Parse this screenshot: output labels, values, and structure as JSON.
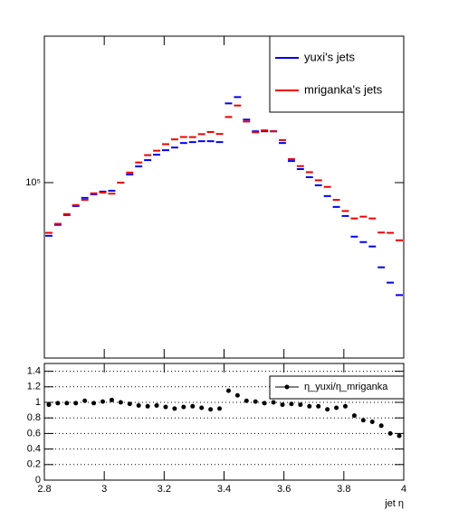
{
  "chart_data": [
    {
      "type": "histogram",
      "log_y": true,
      "bins": [
        2.8,
        2.83,
        2.86,
        2.89,
        2.92,
        2.95,
        2.98,
        3.01,
        3.04,
        3.07,
        3.1,
        3.13,
        3.16,
        3.19,
        3.22,
        3.25,
        3.28,
        3.31,
        3.34,
        3.37,
        3.4,
        3.43,
        3.46,
        3.49,
        3.52,
        3.55,
        3.58,
        3.61,
        3.64,
        3.67,
        3.7,
        3.73,
        3.76,
        3.79,
        3.82,
        3.85,
        3.88,
        3.91,
        3.94,
        3.97,
        4.0
      ],
      "series": [
        {
          "name": "yuxi's jets",
          "color": "#0000ee",
          "values": [
            57900,
            64800,
            71700,
            78600,
            85500,
            88700,
            91200,
            92000,
            100000,
            108700,
            118100,
            126000,
            133200,
            139500,
            143400,
            150200,
            151600,
            153000,
            153000,
            151600,
            225600,
            240700,
            191000,
            169400,
            169400,
            169400,
            150200,
            124800,
            114900,
            105700,
            97300,
            87100,
            77900,
            71000,
            57400,
            54300,
            51900,
            41900,
            35800,
            31500
          ]
        },
        {
          "name": "mriganka's jets",
          "color": "#ee0000",
          "values": [
            59700,
            65500,
            72400,
            79400,
            83800,
            89600,
            90300,
            89300,
            100000,
            110900,
            123000,
            132600,
            138800,
            148400,
            155900,
            159800,
            159600,
            164500,
            168100,
            164800,
            196200,
            220800,
            187300,
            167700,
            171100,
            169400,
            154800,
            127300,
            118500,
            111300,
            102400,
            95700,
            83800,
            74700,
            69200,
            70500,
            69200,
            59900,
            59700,
            55300
          ]
        }
      ],
      "xlim": [
        2.8,
        4.0
      ],
      "xticks": [
        2.8,
        3,
        3.2,
        3.4,
        3.6,
        3.8,
        4
      ],
      "ylim": [
        16500,
        450000
      ],
      "yticks": [
        {
          "value": 100000,
          "label": "10⁵"
        }
      ],
      "legend": "top-right"
    },
    {
      "type": "scatter",
      "xlabel": "jet η",
      "x": [
        2.815,
        2.845,
        2.875,
        2.905,
        2.935,
        2.965,
        2.995,
        3.025,
        3.055,
        3.085,
        3.115,
        3.145,
        3.175,
        3.205,
        3.235,
        3.265,
        3.295,
        3.325,
        3.355,
        3.385,
        3.415,
        3.445,
        3.475,
        3.505,
        3.535,
        3.565,
        3.595,
        3.625,
        3.655,
        3.685,
        3.715,
        3.745,
        3.775,
        3.805,
        3.835,
        3.865,
        3.895,
        3.925,
        3.955,
        3.985
      ],
      "series": [
        {
          "name": "η_yuxi/η_mriganka",
          "color": "#000000",
          "values": [
            0.97,
            0.99,
            0.99,
            0.99,
            1.02,
            0.99,
            1.01,
            1.03,
            1.0,
            0.98,
            0.96,
            0.95,
            0.96,
            0.94,
            0.92,
            0.94,
            0.95,
            0.93,
            0.91,
            0.92,
            1.15,
            1.09,
            1.02,
            1.01,
            0.99,
            1.0,
            0.97,
            0.98,
            0.97,
            0.95,
            0.95,
            0.91,
            0.93,
            0.95,
            0.83,
            0.77,
            0.75,
            0.7,
            0.6,
            0.57
          ]
        }
      ],
      "xlim": [
        2.8,
        4.0
      ],
      "xticks": [
        2.8,
        3,
        3.2,
        3.4,
        3.6,
        3.8,
        4
      ],
      "ylim": [
        0,
        1.5
      ],
      "yticks": [
        0,
        0.2,
        0.4,
        0.6,
        0.8,
        1,
        1.2,
        1.4
      ],
      "grid": true,
      "legend": "top-right"
    }
  ]
}
